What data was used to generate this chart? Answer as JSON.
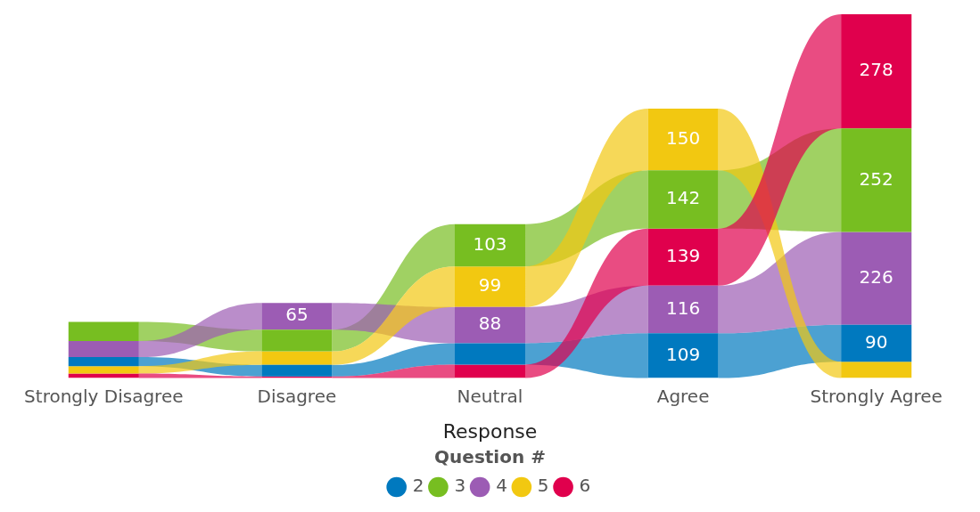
{
  "chart_data": {
    "type": "bar",
    "stacked": true,
    "xlabel": "Response",
    "legend_title": "Question #",
    "legend": "bottom",
    "categories": [
      "Strongly Disagree",
      "Disagree",
      "Neutral",
      "Agree",
      "Strongly Agree"
    ],
    "series": [
      {
        "name": "2",
        "color": "#0079bf",
        "values": [
          22,
          28,
          52,
          109,
          90
        ],
        "value_labels": [
          null,
          null,
          null,
          "109",
          "90"
        ]
      },
      {
        "name": "3",
        "color": "#77be21",
        "values": [
          47,
          53,
          103,
          142,
          252
        ],
        "value_labels": [
          null,
          null,
          "103",
          "142",
          "252"
        ]
      },
      {
        "name": "4",
        "color": "#9c5cb4",
        "values": [
          39,
          65,
          88,
          116,
          226
        ],
        "value_labels": [
          null,
          "65",
          "88",
          "116",
          "226"
        ]
      },
      {
        "name": "5",
        "color": "#f2c811",
        "values": [
          18,
          33,
          99,
          150,
          40
        ],
        "value_labels": [
          null,
          null,
          "99",
          "150",
          null
        ]
      },
      {
        "name": "6",
        "color": "#e0004d",
        "values": [
          11,
          4,
          33,
          139,
          278
        ],
        "value_labels": [
          null,
          null,
          null,
          "139",
          "278"
        ]
      }
    ]
  }
}
